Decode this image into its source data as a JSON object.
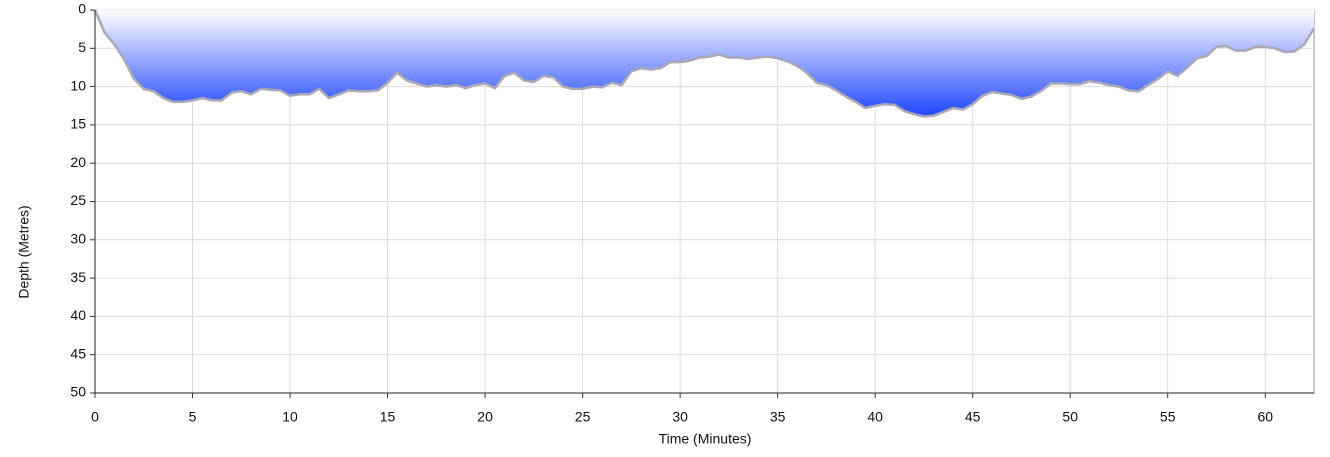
{
  "chart_data": {
    "type": "area",
    "x_label": "Time (Minutes)",
    "y_label": "Depth (Metres)",
    "x": [
      0,
      0.5,
      1,
      1.5,
      2,
      2.5,
      3,
      3.5,
      4,
      4.5,
      5,
      5.5,
      6,
      6.5,
      7,
      7.5,
      8,
      8.5,
      9,
      9.5,
      10,
      10.5,
      11,
      11.5,
      12,
      12.5,
      13,
      13.5,
      14,
      14.5,
      15,
      15.5,
      16,
      16.5,
      17,
      17.5,
      18,
      18.5,
      19,
      19.5,
      20,
      20.5,
      21,
      21.5,
      22,
      22.5,
      23,
      23.5,
      24,
      24.5,
      25,
      25.5,
      26,
      26.5,
      27,
      27.5,
      28,
      28.5,
      29,
      29.5,
      30,
      30.5,
      31,
      31.5,
      32,
      32.5,
      33,
      33.5,
      34,
      34.5,
      35,
      35.5,
      36,
      36.5,
      37,
      37.5,
      38,
      38.5,
      39,
      39.5,
      40,
      40.5,
      41,
      41.5,
      42,
      42.5,
      43,
      43.5,
      44,
      44.5,
      45,
      45.5,
      46,
      46.5,
      47,
      47.5,
      48,
      48.5,
      49,
      49.5,
      50,
      50.5,
      51,
      51.5,
      52,
      52.5,
      53,
      53.5,
      54,
      54.5,
      55,
      55.5,
      56,
      56.5,
      57,
      57.5,
      58,
      58.5,
      59,
      59.5,
      60,
      60.5,
      61,
      61.5,
      62,
      62.5
    ],
    "values": [
      0,
      3,
      4.5,
      6.5,
      9,
      10.3,
      10.6,
      11.5,
      12,
      12,
      11.8,
      11.5,
      11.8,
      11.8,
      10.8,
      10.6,
      11,
      10.3,
      10.4,
      10.5,
      11.2,
      11,
      11,
      10.3,
      11.5,
      11,
      10.5,
      10.6,
      10.6,
      10.5,
      9.5,
      8.2,
      9.2,
      9.6,
      10,
      9.8,
      10,
      9.8,
      10.2,
      9.8,
      9.6,
      10.2,
      8.6,
      8.2,
      9.2,
      9.4,
      8.6,
      8.8,
      10,
      10.3,
      10.3,
      10,
      10.1,
      9.5,
      9.8,
      8,
      7.6,
      7.8,
      7.6,
      6.8,
      6.8,
      6.6,
      6.2,
      6.1,
      5.8,
      6.2,
      6.2,
      6.4,
      6.2,
      6.1,
      6.3,
      6.7,
      7.3,
      8.2,
      9.5,
      9.8,
      10.5,
      11.3,
      12,
      12.8,
      12.5,
      12.3,
      12.4,
      13.2,
      13.6,
      13.9,
      13.8,
      13.3,
      12.8,
      13,
      12.3,
      11.2,
      10.7,
      10.9,
      11.1,
      11.6,
      11.3,
      10.6,
      9.6,
      9.6,
      9.7,
      9.7,
      9.3,
      9.5,
      9.8,
      10,
      10.5,
      10.6,
      9.8,
      9,
      8,
      8.6,
      7.5,
      6.3,
      6,
      4.8,
      4.7,
      5.3,
      5.3,
      4.8,
      4.8,
      5,
      5.5,
      5.4,
      4.5,
      2.4
    ],
    "color": "#1f45ff",
    "line_color": "#a8a8b8",
    "xlim": [
      0,
      62.5
    ],
    "xticks": [
      0,
      5,
      10,
      15,
      20,
      25,
      30,
      35,
      40,
      45,
      50,
      55,
      60
    ],
    "ylim": [
      0,
      50
    ],
    "yticks": [
      0,
      5,
      10,
      15,
      20,
      25,
      30,
      35,
      40,
      45,
      50
    ],
    "y_inverted": true,
    "grid": true
  }
}
